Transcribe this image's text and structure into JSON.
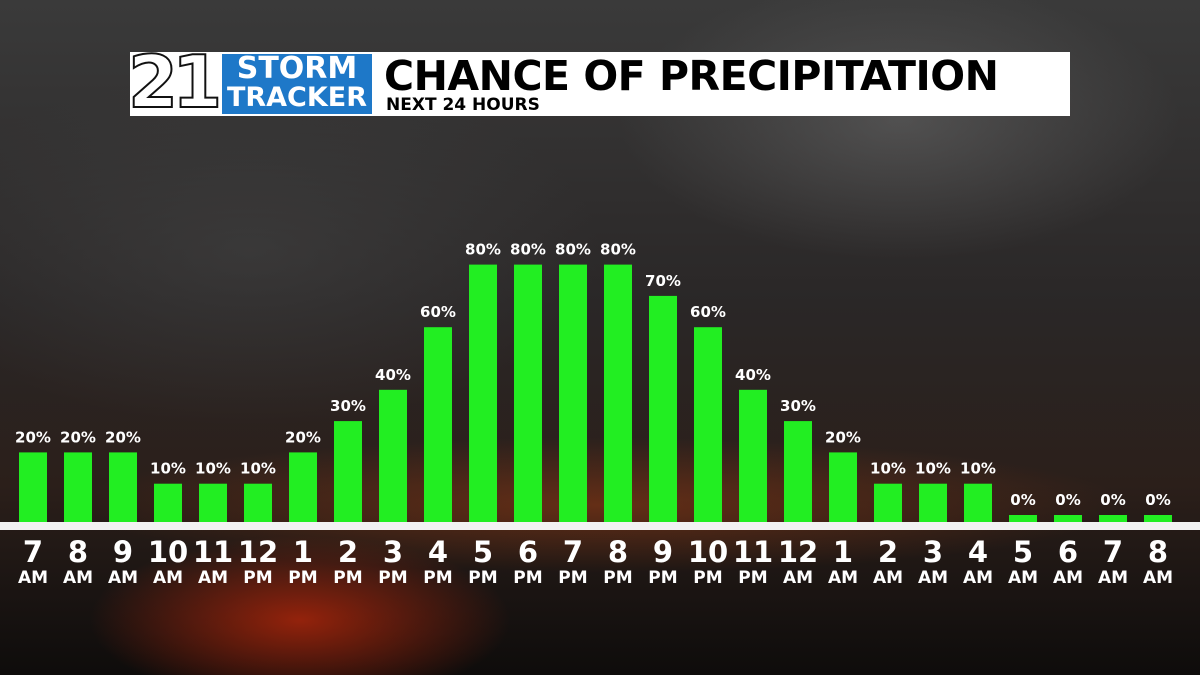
{
  "logo": {
    "number": "21",
    "line1": "STORM",
    "line2": "TRACKER"
  },
  "chart_data": {
    "type": "bar",
    "title": "CHANCE OF PRECIPITATION",
    "subtitle": "NEXT 24 HOURS",
    "categories": [
      "7 AM",
      "8 AM",
      "9 AM",
      "10 AM",
      "11 AM",
      "12 PM",
      "1 PM",
      "2 PM",
      "3 PM",
      "4 PM",
      "5 PM",
      "6 PM",
      "7 PM",
      "8 PM",
      "9 PM",
      "10 PM",
      "11 PM",
      "12 AM",
      "1 AM",
      "2 AM",
      "3 AM",
      "4 AM",
      "5 AM",
      "6 AM",
      "7 AM",
      "8 AM"
    ],
    "values": [
      20,
      20,
      20,
      10,
      10,
      10,
      20,
      30,
      40,
      60,
      80,
      80,
      80,
      80,
      70,
      60,
      40,
      30,
      20,
      10,
      10,
      10,
      0,
      0,
      0,
      0
    ],
    "value_labels": [
      "20%",
      "20%",
      "20%",
      "10%",
      "10%",
      "10%",
      "20%",
      "30%",
      "40%",
      "60%",
      "80%",
      "80%",
      "80%",
      "80%",
      "70%",
      "60%",
      "40%",
      "30%",
      "20%",
      "10%",
      "10%",
      "10%",
      "0%",
      "0%",
      "0%",
      "0%"
    ],
    "color": "#22ee22"
  }
}
